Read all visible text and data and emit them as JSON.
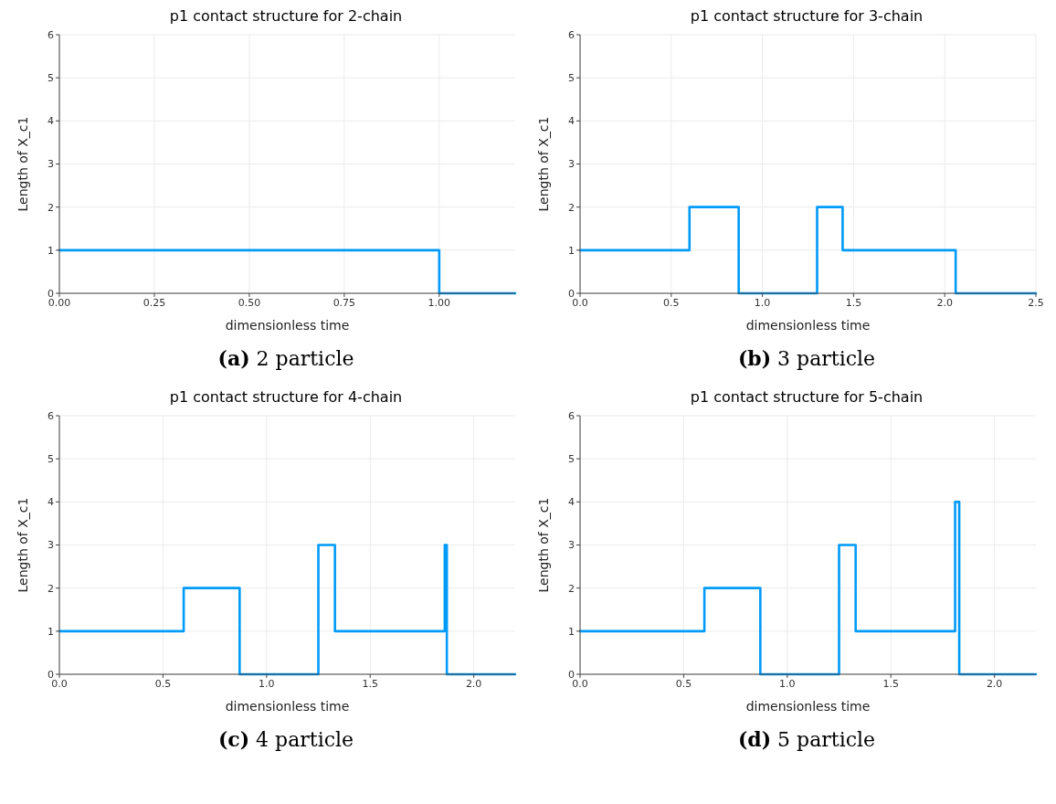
{
  "chart_data": [
    {
      "type": "step",
      "title": "p1 contact structure for 2-chain",
      "xlabel": "dimensionless time",
      "ylabel": "Length of X_c1",
      "annotations": [
        "(a) 2 particle"
      ],
      "xlim": [
        0,
        1.2
      ],
      "xticks": [
        {
          "value": 0,
          "label": "0.00"
        },
        {
          "value": 0.25,
          "label": "0.25"
        },
        {
          "value": 0.5,
          "label": "0.50"
        },
        {
          "value": 0.75,
          "label": "0.75"
        },
        {
          "value": 1,
          "label": "1.00"
        }
      ],
      "ylim": [
        0,
        6
      ],
      "yticks": [
        0,
        1,
        2,
        3,
        4,
        5,
        6
      ],
      "grid": true,
      "legend": false,
      "series": [
        {
          "color": "#009af9",
          "x": [
            0,
            1.0,
            1.2
          ],
          "values": [
            1,
            0,
            0
          ]
        }
      ]
    },
    {
      "type": "step",
      "title": "p1 contact structure for 3-chain",
      "xlabel": "dimensionless time",
      "ylabel": "Length of X_c1",
      "annotations": [
        "(b) 3 particle"
      ],
      "xlim": [
        0,
        2.5
      ],
      "xticks": [
        {
          "value": 0,
          "label": "0.0"
        },
        {
          "value": 0.5,
          "label": "0.5"
        },
        {
          "value": 1,
          "label": "1.0"
        },
        {
          "value": 1.5,
          "label": "1.5"
        },
        {
          "value": 2,
          "label": "2.0"
        },
        {
          "value": 2.5,
          "label": "2.5"
        }
      ],
      "ylim": [
        0,
        6
      ],
      "yticks": [
        0,
        1,
        2,
        3,
        4,
        5,
        6
      ],
      "grid": true,
      "legend": false,
      "series": [
        {
          "color": "#009af9",
          "x": [
            0,
            0.6,
            0.87,
            1.3,
            1.44,
            2.06,
            2.5
          ],
          "values": [
            1,
            2,
            0,
            2,
            1,
            0,
            0
          ]
        }
      ]
    },
    {
      "type": "step",
      "title": "p1 contact structure for 4-chain",
      "xlabel": "dimensionless time",
      "ylabel": "Length of X_c1",
      "annotations": [
        "(c) 4 particle"
      ],
      "xlim": [
        0,
        2.2
      ],
      "xticks": [
        {
          "value": 0,
          "label": "0.0"
        },
        {
          "value": 0.5,
          "label": "0.5"
        },
        {
          "value": 1,
          "label": "1.0"
        },
        {
          "value": 1.5,
          "label": "1.5"
        },
        {
          "value": 2,
          "label": "2.0"
        }
      ],
      "ylim": [
        0,
        6
      ],
      "yticks": [
        0,
        1,
        2,
        3,
        4,
        5,
        6
      ],
      "grid": true,
      "legend": false,
      "series": [
        {
          "color": "#009af9",
          "x": [
            0,
            0.6,
            0.87,
            1.25,
            1.33,
            1.86,
            1.87,
            2.2
          ],
          "values": [
            1,
            2,
            0,
            3,
            1,
            3,
            0,
            0
          ]
        }
      ]
    },
    {
      "type": "step",
      "title": "p1 contact structure for 5-chain",
      "xlabel": "dimensionless time",
      "ylabel": "Length of X_c1",
      "annotations": [
        "(d) 5 particle"
      ],
      "xlim": [
        0,
        2.2
      ],
      "xticks": [
        {
          "value": 0,
          "label": "0.0"
        },
        {
          "value": 0.5,
          "label": "0.5"
        },
        {
          "value": 1,
          "label": "1.0"
        },
        {
          "value": 1.5,
          "label": "1.5"
        },
        {
          "value": 2,
          "label": "2.0"
        }
      ],
      "ylim": [
        0,
        6
      ],
      "yticks": [
        0,
        1,
        2,
        3,
        4,
        5,
        6
      ],
      "grid": true,
      "legend": false,
      "series": [
        {
          "color": "#009af9",
          "x": [
            0,
            0.6,
            0.87,
            1.25,
            1.33,
            1.81,
            1.83,
            2.2
          ],
          "values": [
            1,
            2,
            0,
            3,
            1,
            4,
            0,
            0
          ]
        }
      ]
    }
  ]
}
